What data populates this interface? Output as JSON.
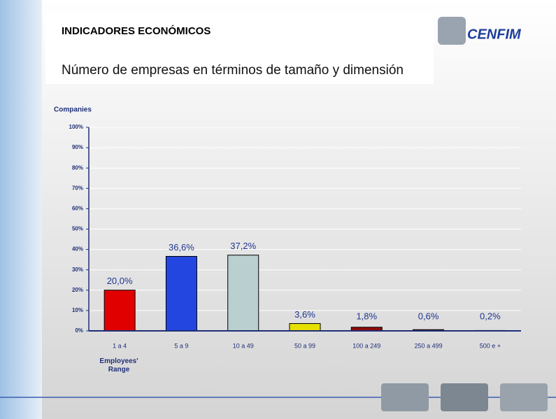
{
  "header": {
    "title": "INDICADORES ECONÓMICOS",
    "subtitle": "Número de empresas en términos de tamaño y dimensión",
    "logo": "CENFIM"
  },
  "chart_data": {
    "type": "bar",
    "y_label": "Companies",
    "x_label": "Employees' Range",
    "categories": [
      "1 a 4",
      "5 a 9",
      "10 a 49",
      "50 a 99",
      "100 a 249",
      "250 a 499",
      "500 e +"
    ],
    "values": [
      20.0,
      36.6,
      37.2,
      3.6,
      1.8,
      0.6,
      0.2
    ],
    "value_labels": [
      "20,0%",
      "36,6%",
      "37,2%",
      "3,6%",
      "1,8%",
      "0,6%",
      "0,2%"
    ],
    "colors": [
      "#e00000",
      "#2446e0",
      "#b9cfd0",
      "#e6e000",
      "#8e0a0a",
      "#7a1a10",
      "#5a2a20"
    ],
    "ylim": [
      0,
      100
    ],
    "yticks": [
      {
        "value": 0,
        "label": "0%"
      },
      {
        "value": 10,
        "label": "10%"
      },
      {
        "value": 20,
        "label": "20%"
      },
      {
        "value": 30,
        "label": "30%"
      },
      {
        "value": 40,
        "label": "40%"
      },
      {
        "value": 50,
        "label": "50%"
      },
      {
        "value": 60,
        "label": "60%"
      },
      {
        "value": 70,
        "label": "70%"
      },
      {
        "value": 80,
        "label": "80%"
      },
      {
        "value": 90,
        "label": "90%"
      },
      {
        "value": 100,
        "label": "100%"
      }
    ],
    "grid": true
  }
}
